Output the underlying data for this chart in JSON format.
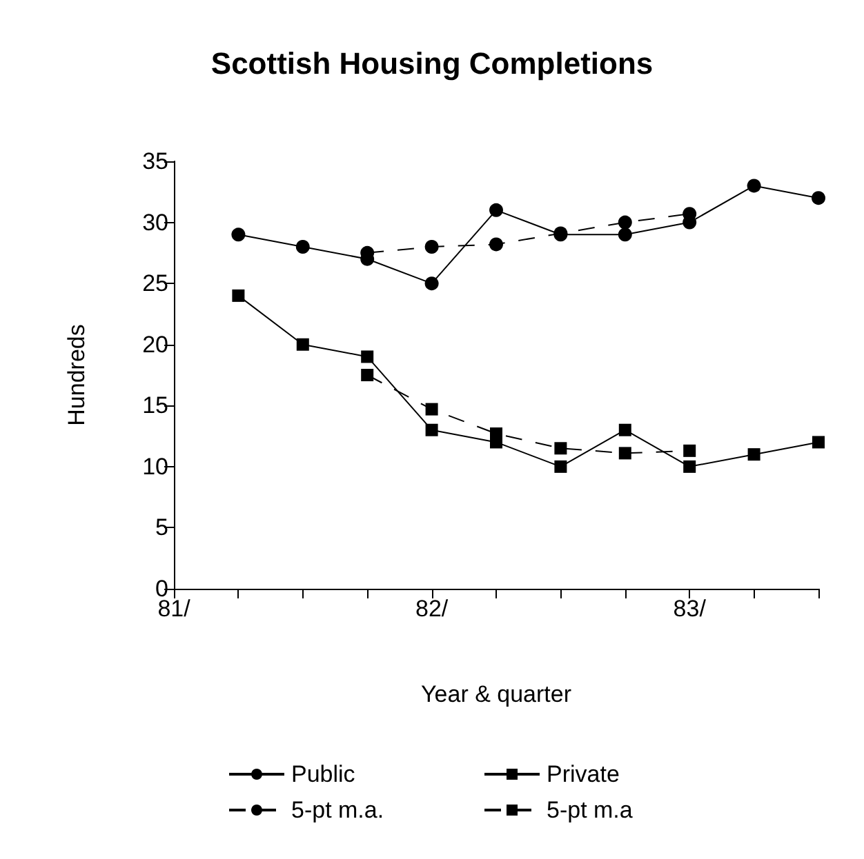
{
  "chart_data": {
    "type": "line",
    "title": "Scottish Housing Completions",
    "xlabel": "Year & quarter",
    "ylabel": "Hundreds",
    "x": [
      81.25,
      81.5,
      81.75,
      82,
      82.25,
      82.5,
      82.75,
      83,
      83.25,
      83.5
    ],
    "series": [
      {
        "name": "Public",
        "color": "#000000",
        "marker": "circle",
        "line_style": "solid",
        "values": [
          29,
          28,
          27,
          25,
          31,
          29,
          29,
          30,
          33,
          32
        ]
      },
      {
        "name": "Private",
        "color": "#000000",
        "marker": "square",
        "line_style": "solid",
        "values": [
          24,
          20,
          19,
          13,
          12,
          10,
          13,
          10,
          11,
          12
        ]
      },
      {
        "name": "5-pt m.a.",
        "color": "#000000",
        "marker": "circle",
        "line_style": "dashed",
        "x": [
          81.75,
          82,
          82.25,
          82.5,
          82.75,
          83
        ],
        "values": [
          27.5,
          28,
          28.2,
          29.1,
          30,
          30.7
        ]
      },
      {
        "name": "5-pt m.a",
        "color": "#000000",
        "marker": "square",
        "line_style": "dashed",
        "x": [
          81.75,
          82,
          82.25,
          82.5,
          82.75,
          83
        ],
        "values": [
          17.5,
          14.7,
          12.7,
          11.5,
          11.1,
          11.3
        ]
      }
    ],
    "xlim": [
      81,
      83.5
    ],
    "xticks": [
      {
        "value": 81,
        "label": "81/"
      },
      {
        "value": 81.25,
        "label": null
      },
      {
        "value": 81.5,
        "label": null
      },
      {
        "value": 81.75,
        "label": null
      },
      {
        "value": 82,
        "label": "82/"
      },
      {
        "value": 82.25,
        "label": null
      },
      {
        "value": 82.5,
        "label": null
      },
      {
        "value": 82.75,
        "label": null
      },
      {
        "value": 83,
        "label": "83/"
      },
      {
        "value": 83.25,
        "label": null
      },
      {
        "value": 83.5,
        "label": null
      }
    ],
    "ylim": [
      0,
      35
    ],
    "yticks": [
      0,
      5,
      10,
      15,
      20,
      25,
      30,
      35
    ],
    "grid": false,
    "legend": "bottom"
  }
}
